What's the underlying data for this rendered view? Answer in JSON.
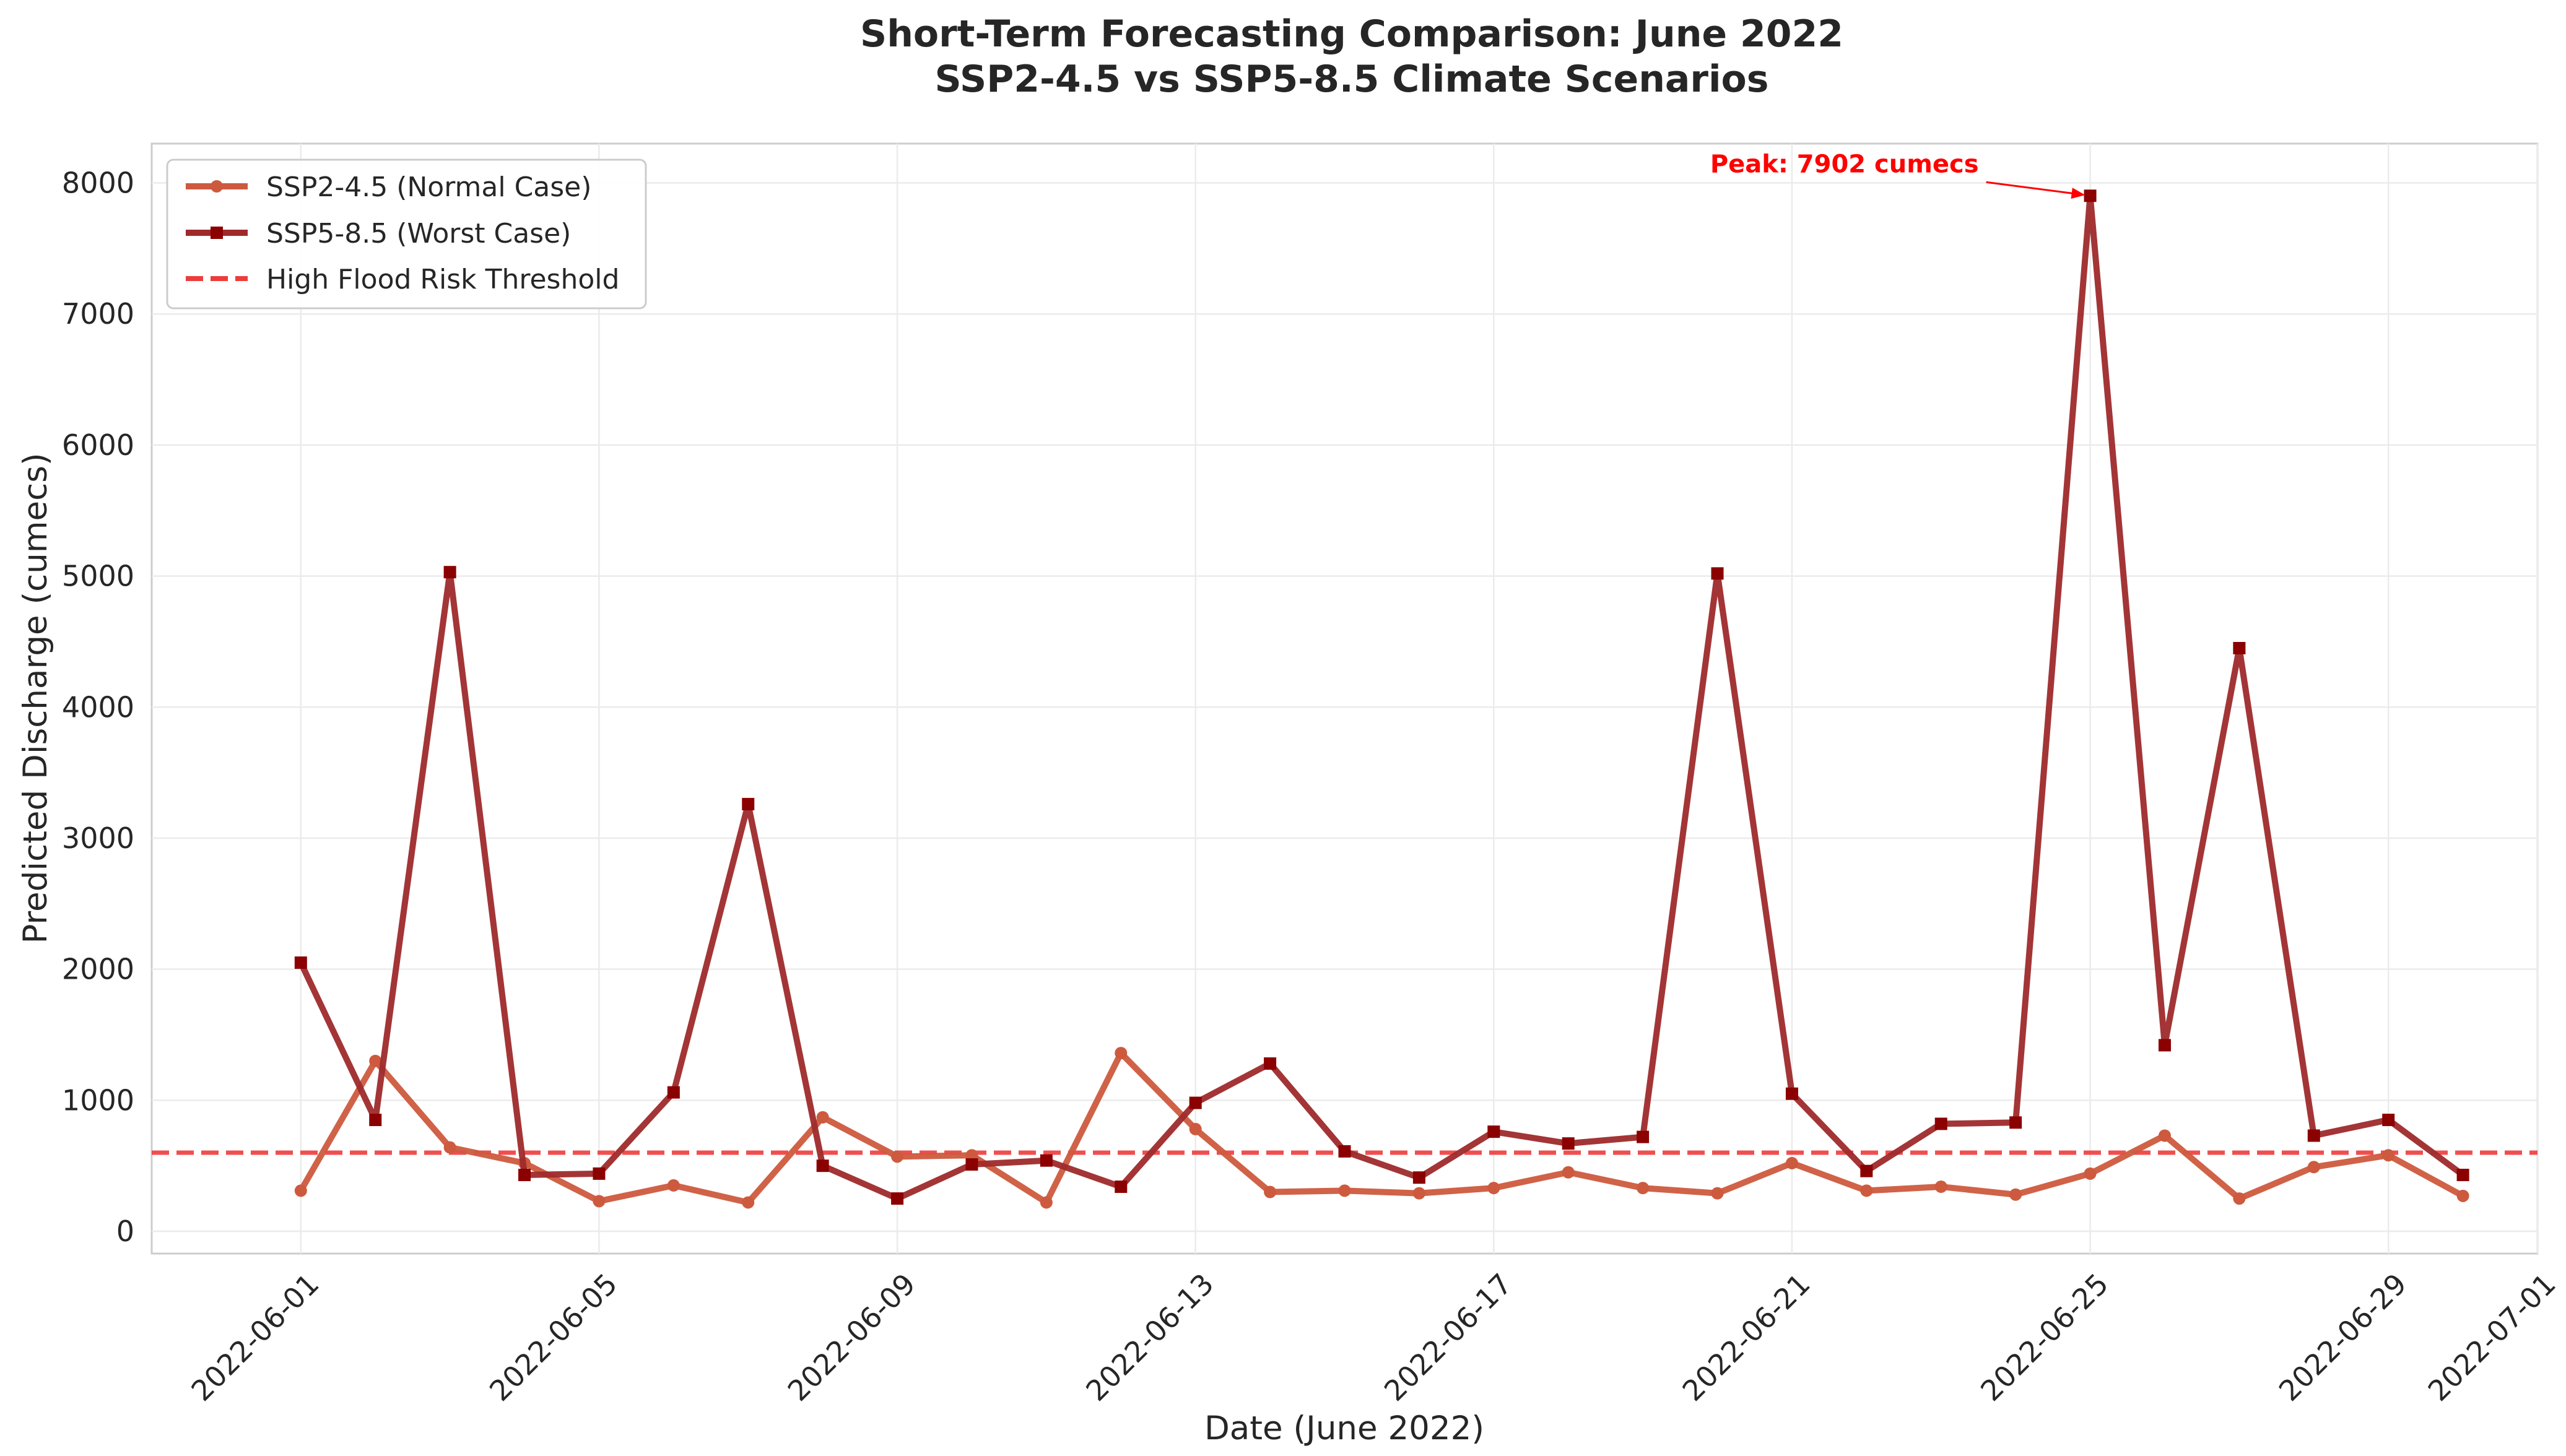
{
  "chart_data": {
    "type": "line",
    "title": "Short-Term Forecasting Comparison: June 2022",
    "subtitle": "SSP2-4.5 vs SSP5-8.5 Climate Scenarios",
    "xlabel": "Date (June 2022)",
    "ylabel": "Predicted Discharge (cumecs)",
    "x": [
      "2022-06-01",
      "2022-06-02",
      "2022-06-03",
      "2022-06-04",
      "2022-06-05",
      "2022-06-06",
      "2022-06-07",
      "2022-06-08",
      "2022-06-09",
      "2022-06-10",
      "2022-06-11",
      "2022-06-12",
      "2022-06-13",
      "2022-06-14",
      "2022-06-15",
      "2022-06-16",
      "2022-06-17",
      "2022-06-18",
      "2022-06-19",
      "2022-06-20",
      "2022-06-21",
      "2022-06-22",
      "2022-06-23",
      "2022-06-24",
      "2022-06-25",
      "2022-06-26",
      "2022-06-27",
      "2022-06-28",
      "2022-06-29",
      "2022-06-30"
    ],
    "x_ticks": [
      "2022-06-01",
      "2022-06-05",
      "2022-06-09",
      "2022-06-13",
      "2022-06-17",
      "2022-06-21",
      "2022-06-25",
      "2022-06-29",
      "2022-07-01"
    ],
    "xlim": [
      "2022-05-30",
      "2022-07-01"
    ],
    "y_ticks": [
      0,
      1000,
      2000,
      3000,
      4000,
      5000,
      6000,
      7000,
      8000
    ],
    "ylim": [
      -170,
      8300
    ],
    "grid": true,
    "legend_position": "upper-left",
    "series": [
      {
        "name": "SSP2-4.5 (Normal Case)",
        "color": "#cd5a3e",
        "marker": "circle",
        "values": [
          310,
          1300,
          640,
          520,
          230,
          350,
          220,
          870,
          570,
          580,
          220,
          1360,
          780,
          300,
          310,
          290,
          330,
          450,
          330,
          290,
          520,
          310,
          340,
          280,
          440,
          730,
          250,
          490,
          580,
          270
        ]
      },
      {
        "name": "SSP5-8.5 (Worst Case)",
        "color": "#9e2a2b",
        "marker_color": "#8b0000",
        "marker": "square",
        "values": [
          2050,
          850,
          5030,
          430,
          440,
          1060,
          3260,
          500,
          250,
          510,
          540,
          340,
          980,
          1280,
          610,
          410,
          760,
          670,
          720,
          5020,
          1050,
          460,
          820,
          830,
          7902,
          1420,
          4450,
          730,
          850,
          430
        ]
      }
    ],
    "threshold": {
      "name": "High Flood Risk Threshold",
      "value": 600,
      "color": "#ee3b3b",
      "style": "dashed"
    },
    "annotation": {
      "text": "Peak: 7902 cumecs",
      "x": "2022-06-25",
      "y": 7902,
      "color": "#ff0000"
    }
  }
}
